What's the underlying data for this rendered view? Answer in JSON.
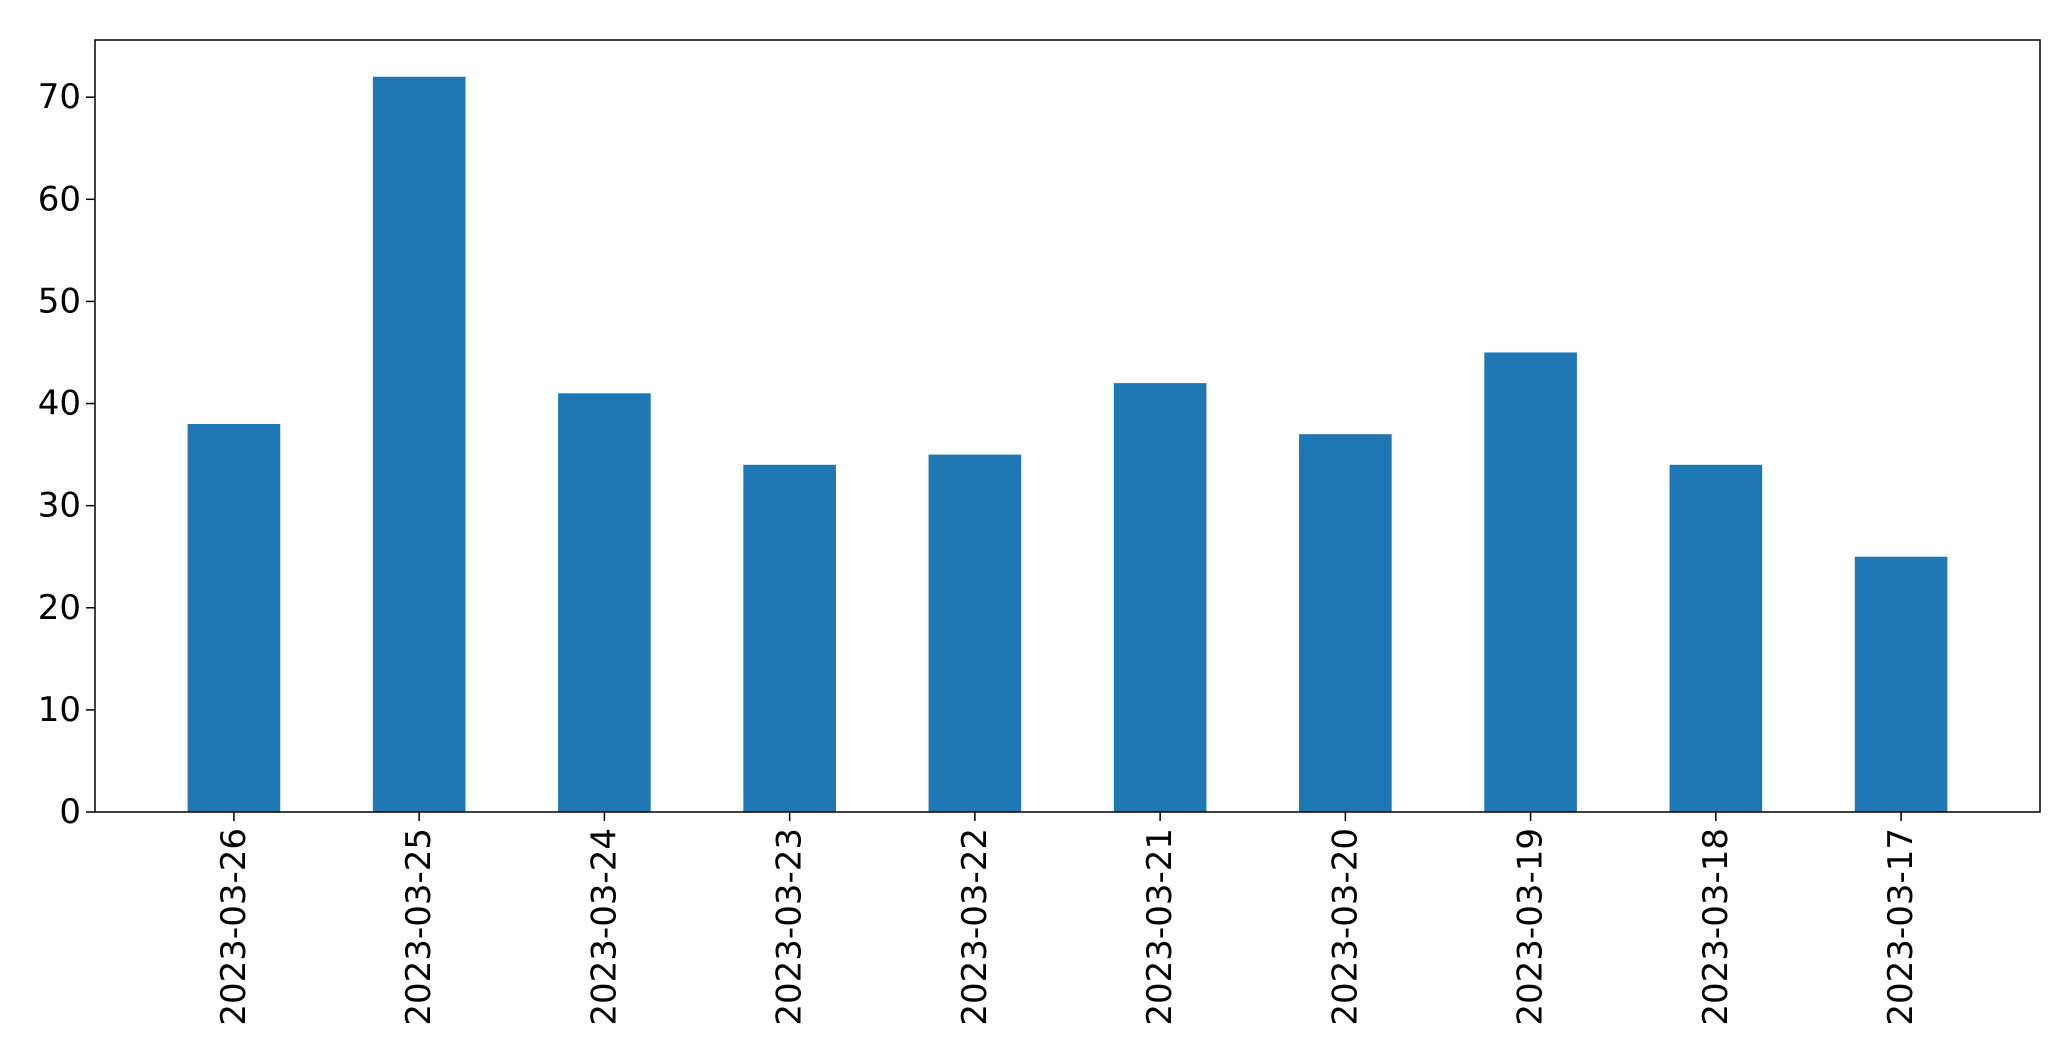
{
  "chart_data": {
    "type": "bar",
    "title": "",
    "xlabel": "",
    "ylabel": "",
    "categories": [
      "2023-03-26",
      "2023-03-25",
      "2023-03-24",
      "2023-03-23",
      "2023-03-22",
      "2023-03-21",
      "2023-03-20",
      "2023-03-19",
      "2023-03-18",
      "2023-03-17"
    ],
    "values": [
      38,
      72,
      41,
      34,
      35,
      42,
      37,
      45,
      34,
      25
    ],
    "ylim": [
      0,
      75.6
    ],
    "yticks": [
      0,
      10,
      20,
      30,
      40,
      50,
      60,
      70
    ],
    "bar_color": "#1f77b4",
    "grid": false,
    "legend": "none"
  }
}
